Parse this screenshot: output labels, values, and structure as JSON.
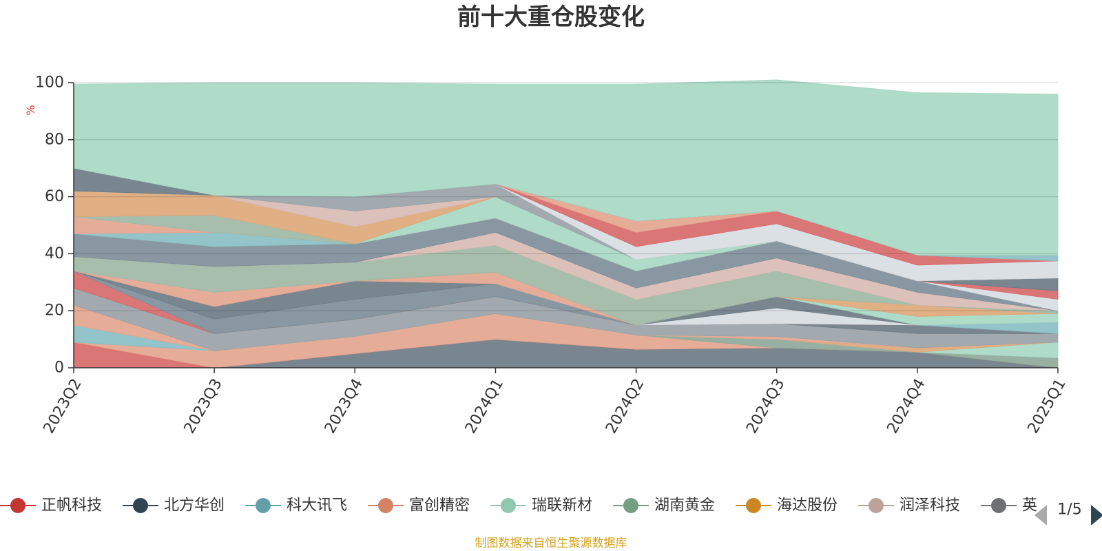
{
  "page": {
    "title": "前十大重仓股变化",
    "source_note": "制图数据来自恒生聚源数据库"
  },
  "chart_data": {
    "type": "area",
    "stacked": true,
    "title": "前十大重仓股变化",
    "ylabel": "%",
    "ylim": [
      0,
      100
    ],
    "yticks": [
      0,
      20,
      40,
      60,
      80,
      100
    ],
    "grid": true,
    "x": [
      "2023Q2",
      "2023Q3",
      "2023Q4",
      "2024Q1",
      "2024Q2",
      "2024Q3",
      "2024Q4",
      "2025Q1"
    ],
    "series": [
      {
        "color": "#6e7c87",
        "values": [
          0,
          0,
          5,
          10,
          6.5,
          7,
          5.5,
          0
        ]
      },
      {
        "color": "#d86a6a",
        "values": [
          9,
          0,
          0,
          0,
          0,
          0,
          0,
          0
        ]
      },
      {
        "color": "#e3a58f",
        "values": [
          0,
          6,
          6,
          9,
          5,
          0,
          0,
          0
        ]
      },
      {
        "color": "#8fa999",
        "values": [
          0,
          0,
          0,
          0,
          0,
          3,
          0,
          3.5
        ]
      },
      {
        "color": "#a8d8c4",
        "values": [
          0,
          0,
          0,
          0,
          0,
          0,
          0,
          5.5
        ]
      },
      {
        "color": "#8abfc4",
        "values": [
          6,
          0,
          0,
          0,
          0,
          0,
          0,
          0
        ]
      },
      {
        "color": "#dda87a",
        "values": [
          0,
          0,
          0,
          0,
          0,
          0,
          1.5,
          0
        ]
      },
      {
        "color": "#e3a58f",
        "values": [
          7,
          0,
          0,
          0,
          0,
          1,
          0,
          0
        ]
      },
      {
        "color": "#9aa3a9",
        "values": [
          6,
          6,
          6,
          6,
          3.5,
          4.5,
          5,
          3
        ]
      },
      {
        "color": "#6e7c87",
        "values": [
          0,
          0,
          0,
          0,
          0,
          0,
          3,
          0
        ]
      },
      {
        "color": "#d86a6a",
        "values": [
          6,
          0,
          0,
          0,
          0,
          0,
          0,
          0
        ]
      },
      {
        "color": "#7e8e99",
        "values": [
          0,
          5,
          7,
          4.5,
          0,
          0,
          0,
          0
        ]
      },
      {
        "color": "#d8dde2",
        "values": [
          0,
          0,
          0,
          0,
          0,
          5.5,
          0,
          0
        ]
      },
      {
        "color": "#6e7c87",
        "values": [
          0,
          4.5,
          6.5,
          0,
          0,
          4,
          0,
          0
        ]
      },
      {
        "color": "#8abfc4",
        "values": [
          0,
          0,
          0,
          0,
          0,
          0,
          0,
          4
        ]
      },
      {
        "color": "#e3a58f",
        "values": [
          0,
          5,
          0,
          4,
          0,
          0,
          0,
          0
        ]
      },
      {
        "color": "#a8d8c4",
        "values": [
          0,
          0,
          0,
          0,
          0,
          0,
          3,
          3
        ]
      },
      {
        "color": "#dda87a",
        "values": [
          0,
          0,
          0,
          0,
          0,
          0,
          4,
          0
        ]
      },
      {
        "color": "#9fb8a6",
        "values": [
          5,
          9,
          6.5,
          9.5,
          9,
          9,
          0,
          1
        ]
      },
      {
        "color": "#d8bcb4",
        "values": [
          0,
          0,
          0,
          4.5,
          4,
          4.5,
          4.5,
          0
        ]
      },
      {
        "color": "#7e8e99",
        "values": [
          8,
          7,
          6.5,
          5,
          6,
          6,
          4,
          0
        ]
      },
      {
        "color": "#d8dde2",
        "values": [
          0,
          0,
          0,
          0,
          0,
          0,
          0,
          4
        ]
      },
      {
        "color": "#d86a6a",
        "values": [
          0,
          0,
          0,
          0,
          0,
          0,
          0,
          3
        ]
      },
      {
        "color": "#6e7c87",
        "values": [
          0,
          0,
          0,
          0,
          0,
          0,
          0,
          4.5
        ]
      },
      {
        "color": "#8abfc4",
        "values": [
          0,
          5,
          0,
          0,
          0,
          0,
          0,
          0
        ]
      },
      {
        "color": "#e3a58f",
        "values": [
          6,
          0,
          0,
          0,
          0,
          0,
          0,
          0
        ]
      },
      {
        "color": "#a8d8c4",
        "values": [
          0,
          0,
          0,
          7.5,
          4,
          0,
          0,
          0
        ]
      },
      {
        "color": "#9fb8a6",
        "values": [
          0,
          6,
          0,
          0,
          0,
          0,
          0,
          0
        ]
      },
      {
        "color": "#dda87a",
        "values": [
          9,
          7,
          6,
          0,
          0,
          0,
          0,
          0
        ]
      },
      {
        "color": "#d8bcb4",
        "values": [
          0,
          0,
          5.5,
          0,
          0,
          0,
          0,
          0
        ]
      },
      {
        "color": "#9aa3a9",
        "values": [
          0,
          0,
          5,
          4.5,
          0,
          0,
          0,
          0
        ]
      },
      {
        "color": "#d8dde2",
        "values": [
          0,
          0,
          0,
          0,
          4.5,
          6,
          5.5,
          6
        ]
      },
      {
        "color": "#d86a6a",
        "values": [
          0,
          0,
          0,
          0,
          5,
          4.5,
          3.5,
          0
        ]
      },
      {
        "color": "#e3a58f",
        "values": [
          0,
          0,
          0,
          0,
          4,
          0,
          0,
          0
        ]
      },
      {
        "color": "#8abfc4",
        "values": [
          0,
          0,
          0,
          0,
          0,
          0,
          0,
          2
        ]
      },
      {
        "color": "#6e7c87",
        "values": [
          8,
          0,
          0,
          0,
          0,
          0,
          0,
          0
        ]
      },
      {
        "color": "#a8d8c4",
        "values": [
          29.5,
          39.5,
          40,
          35,
          48,
          46,
          57,
          56.5
        ]
      }
    ]
  },
  "legend": {
    "items": [
      {
        "label": "正帆科技",
        "color": "#c23531"
      },
      {
        "label": "北方华创",
        "color": "#2f4554"
      },
      {
        "label": "科大讯飞",
        "color": "#61a0a8"
      },
      {
        "label": "富创精密",
        "color": "#d48265"
      },
      {
        "label": "瑞联新材",
        "color": "#91c7ae"
      },
      {
        "label": "湖南黄金",
        "color": "#749f83"
      },
      {
        "label": "海达股份",
        "color": "#ca8622"
      },
      {
        "label": "润泽科技",
        "color": "#bda29a"
      },
      {
        "label": "英",
        "color": "#6e7074"
      }
    ],
    "page": "1/5"
  }
}
